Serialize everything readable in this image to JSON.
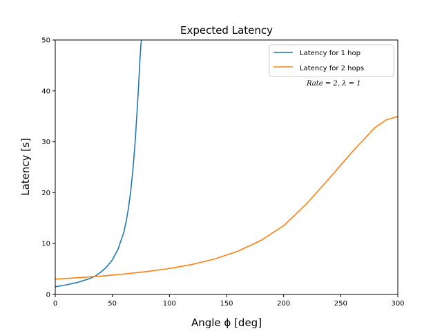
{
  "chart_data": {
    "type": "line",
    "title": "Expected Latency",
    "xlabel": "Angle ϕ [deg]",
    "ylabel": "Latency [s]",
    "xlim": [
      0,
      300
    ],
    "ylim": [
      0,
      50
    ],
    "xticks": [
      0,
      50,
      100,
      150,
      200,
      250,
      300
    ],
    "yticks": [
      0,
      10,
      20,
      30,
      40,
      50
    ],
    "grid": false,
    "legend_position": "top-right",
    "annotation": "Rate = 2,  λ = 1",
    "series": [
      {
        "name": "Latency for 1 hop",
        "color": "#1f77b4",
        "x": [
          0,
          10,
          20,
          30,
          35,
          40,
          45,
          50,
          55,
          60,
          62,
          64,
          66,
          68,
          70,
          72,
          73,
          74,
          75,
          75.5
        ],
        "y": [
          1.5,
          1.9,
          2.4,
          3.1,
          3.6,
          4.4,
          5.4,
          6.8,
          8.9,
          12.2,
          14.2,
          16.8,
          20.1,
          24.5,
          30.0,
          37.2,
          41.0,
          45.5,
          49.0,
          50.0
        ]
      },
      {
        "name": "Latency for 2 hops",
        "color": "#ff7f0e",
        "x": [
          0,
          20,
          40,
          60,
          80,
          100,
          120,
          140,
          160,
          180,
          200,
          220,
          240,
          260,
          280,
          290,
          300
        ],
        "y": [
          3.0,
          3.3,
          3.6,
          4.0,
          4.5,
          5.1,
          5.9,
          7.0,
          8.5,
          10.6,
          13.5,
          17.8,
          22.8,
          28.0,
          32.8,
          34.3,
          35.0
        ]
      }
    ]
  }
}
